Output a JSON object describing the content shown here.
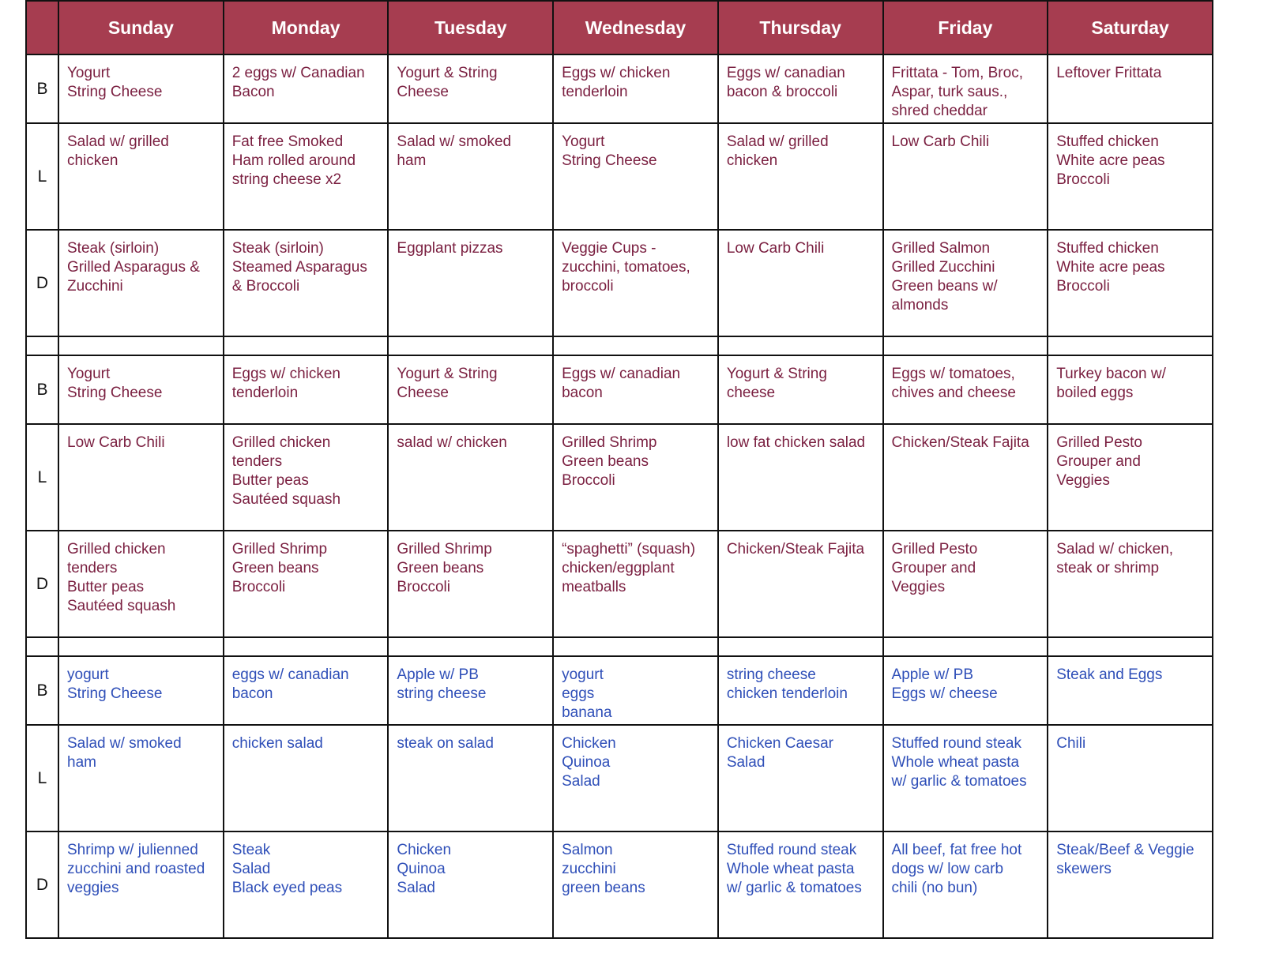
{
  "days": [
    "Sunday",
    "Monday",
    "Tuesday",
    "Wednesday",
    "Thursday",
    "Friday",
    "Saturday"
  ],
  "colors": {
    "header_bg": "#a63d50",
    "header_text": "#ffffff",
    "week_text_red": "#7a1f40",
    "week_text_blue": "#2f4fb8"
  },
  "weeks": [
    {
      "rows": [
        {
          "label": "B",
          "cells": [
            "Yogurt\nString Cheese",
            "2 eggs w/ Canadian\nBacon",
            "Yogurt & String\nCheese",
            "Eggs w/ chicken\ntenderloin",
            "Eggs w/ canadian\nbacon & broccoli",
            "Frittata - Tom, Broc,\nAspar, turk saus.,\nshred cheddar",
            "Leftover Frittata"
          ]
        },
        {
          "label": "L",
          "cells": [
            "Salad w/ grilled\nchicken",
            "Fat free Smoked\nHam rolled around\nstring cheese x2",
            "Salad w/ smoked\nham",
            "Yogurt\nString Cheese",
            "Salad w/ grilled\nchicken",
            "Low Carb Chili",
            "Stuffed chicken\nWhite acre peas\nBroccoli"
          ]
        },
        {
          "label": "D",
          "cells": [
            "Steak (sirloin)\nGrilled Asparagus &\nZucchini",
            "Steak (sirloin)\nSteamed Asparagus\n& Broccoli",
            "Eggplant pizzas",
            "Veggie Cups -\nzucchini, tomatoes,\nbroccoli",
            "Low Carb Chili",
            "Grilled Salmon\nGrilled Zucchini\nGreen beans w/\nalmonds",
            "Stuffed chicken\nWhite acre peas\nBroccoli"
          ]
        }
      ]
    },
    {
      "rows": [
        {
          "label": "B",
          "cells": [
            "Yogurt\nString Cheese",
            "Eggs w/ chicken\ntenderloin",
            "Yogurt & String\nCheese",
            "Eggs w/ canadian\nbacon",
            "Yogurt & String\ncheese",
            "Eggs w/ tomatoes,\nchives and cheese",
            "Turkey bacon w/\nboiled eggs"
          ]
        },
        {
          "label": "L",
          "cells": [
            "Low Carb Chili",
            "Grilled chicken\ntenders\nButter peas\nSautéed squash",
            "salad w/ chicken",
            "Grilled Shrimp\nGreen beans\nBroccoli",
            "low fat chicken salad",
            "Chicken/Steak Fajita",
            "Grilled Pesto\nGrouper and\nVeggies"
          ]
        },
        {
          "label": "D",
          "cells": [
            "Grilled chicken\ntenders\nButter peas\nSautéed squash",
            "Grilled Shrimp\nGreen beans\nBroccoli",
            "Grilled Shrimp\nGreen beans\nBroccoli",
            "“spaghetti” (squash)\nchicken/eggplant\nmeatballs",
            "Chicken/Steak Fajita",
            "Grilled Pesto\nGrouper and\nVeggies",
            "Salad w/ chicken,\nsteak or shrimp"
          ]
        }
      ]
    },
    {
      "rows": [
        {
          "label": "B",
          "cells": [
            "yogurt\nString Cheese",
            "eggs w/ canadian\nbacon",
            "Apple w/ PB\nstring cheese",
            "yogurt\neggs\nbanana",
            "string cheese\nchicken tenderloin",
            "Apple w/ PB\nEggs w/ cheese",
            "Steak and Eggs"
          ]
        },
        {
          "label": "L",
          "cells": [
            "Salad w/ smoked\nham",
            "chicken salad",
            "steak on salad",
            "Chicken\nQuinoa\nSalad",
            "Chicken Caesar\nSalad",
            "Stuffed round steak\nWhole wheat pasta\nw/ garlic & tomatoes",
            "Chili"
          ]
        },
        {
          "label": "D",
          "cells": [
            "Shrimp w/ julienned\nzucchini and roasted\nveggies",
            "Steak\nSalad\nBlack eyed peas",
            "Chicken\nQuinoa\nSalad",
            "Salmon\nzucchini\ngreen beans",
            "Stuffed round steak\nWhole wheat pasta\nw/ garlic & tomatoes",
            "All beef, fat free hot\ndogs w/ low carb\nchili (no bun)",
            "Steak/Beef & Veggie\nskewers"
          ]
        }
      ]
    }
  ]
}
